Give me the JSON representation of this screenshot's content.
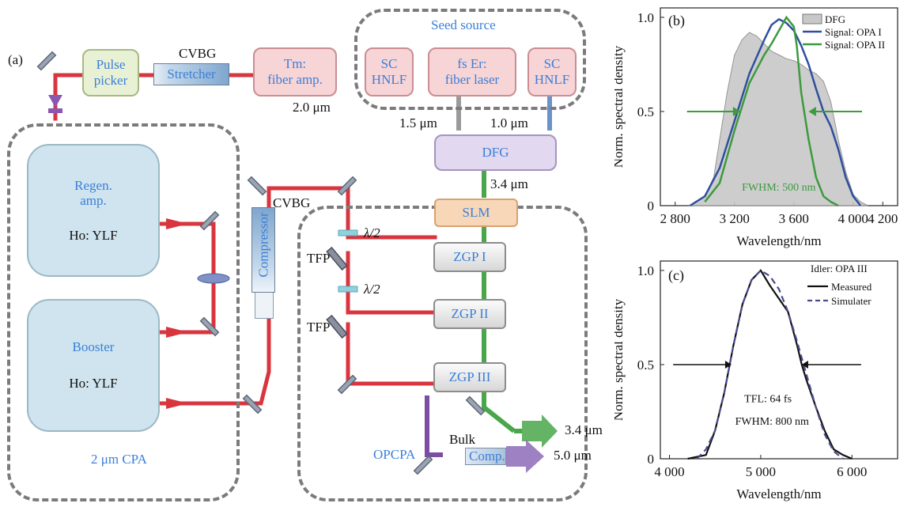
{
  "panels": {
    "a": "(a)",
    "b": "(b)",
    "c": "(c)"
  },
  "setup": {
    "pulse_picker": "Pulse\npicker",
    "cvbg_top": "CVBG",
    "stretcher": "Stretcher",
    "tm_amp": "Tm:\nfiber amp.",
    "seed_source": "Seed source",
    "sc_hnlf_left": "SC\nHNLF",
    "fs_er_laser": "fs Er:\nfiber laser",
    "sc_hnlf_right": "SC\nHNLF",
    "wl_2um": "2.0 μm",
    "wl_15um": "1.5 μm",
    "wl_10um": "1.0 μm",
    "dfg": "DFG",
    "wl_34um_dfg": "3.4 μm",
    "slm": "SLM",
    "cvbg_mid": "CVBG",
    "compressor": "Compressor",
    "regen_title": "Regen.\namp.",
    "regen_crystal": "Ho: YLF",
    "booster_title": "Booster",
    "booster_crystal": "Ho: YLF",
    "cpa_label": "2 μm CPA",
    "half_wave_1": "λ/2",
    "half_wave_2": "λ/2",
    "tfp_1": "TFP",
    "tfp_2": "TFP",
    "zgp1": "ZGP I",
    "zgp2": "ZGP II",
    "zgp3": "ZGP III",
    "out_34um": "3.4 μm",
    "out_50um": "5.0 μm",
    "opcpa_label": "OPCPA",
    "bulk": "Bulk",
    "comp": "Comp."
  },
  "colors": {
    "beam_red": "#d9353f",
    "beam_green": "#4aa64a",
    "beam_purple": "#7b4ea3",
    "beam_grey": "#9a9a9a",
    "beam_blue": "#6a93c9",
    "label_blue": "#3a7fd8",
    "dfg_fill": "#c8c8c8",
    "opa1": "#2f4f9e",
    "opa2": "#3d9a3d",
    "sim": "#4a4a8c"
  },
  "chart_data": [
    {
      "panel": "(b)",
      "type": "area",
      "xlabel": "Wavelength/nm",
      "ylabel": "Norm. spectral density",
      "xlim": [
        2700,
        4300
      ],
      "ylim": [
        0,
        1.05
      ],
      "x_ticks": [
        2800,
        3200,
        3600,
        4000,
        4200
      ],
      "x_tick_labels": [
        "2 800",
        "3 200",
        "3 600",
        "4 000",
        "4 200"
      ],
      "y_ticks": [
        0,
        0.5,
        1.0
      ],
      "y_tick_labels": [
        "0",
        "0.5",
        "1.0"
      ],
      "legend": [
        "DFG",
        "Signal: OPA I",
        "Signal: OPA II"
      ],
      "legend_position": "top-right",
      "annotation": "FWHM: 500 nm",
      "series": [
        {
          "name": "DFG",
          "x": [
            2900,
            3000,
            3060,
            3100,
            3150,
            3200,
            3250,
            3300,
            3350,
            3400,
            3450,
            3500,
            3550,
            3600,
            3650,
            3700,
            3750,
            3800,
            3850,
            3900,
            3950,
            4000,
            4050,
            4100
          ],
          "y": [
            0.0,
            0.05,
            0.15,
            0.35,
            0.6,
            0.8,
            0.88,
            0.92,
            0.9,
            0.86,
            0.82,
            0.8,
            0.78,
            0.77,
            0.75,
            0.72,
            0.7,
            0.66,
            0.55,
            0.35,
            0.18,
            0.06,
            0.02,
            0.0
          ]
        },
        {
          "name": "Signal: OPA I",
          "x": [
            2900,
            3000,
            3100,
            3200,
            3300,
            3400,
            3450,
            3500,
            3550,
            3600,
            3650,
            3700,
            3750,
            3800,
            3850,
            3900,
            3950,
            4000,
            4050
          ],
          "y": [
            0.0,
            0.05,
            0.2,
            0.45,
            0.7,
            0.88,
            0.96,
            0.99,
            0.97,
            0.93,
            0.85,
            0.75,
            0.62,
            0.5,
            0.42,
            0.3,
            0.15,
            0.05,
            0.0
          ]
        },
        {
          "name": "Signal: OPA II",
          "x": [
            3000,
            3100,
            3200,
            3300,
            3400,
            3450,
            3500,
            3550,
            3600,
            3620,
            3650,
            3700,
            3750,
            3800,
            3850,
            3900
          ],
          "y": [
            0.02,
            0.12,
            0.4,
            0.65,
            0.8,
            0.86,
            0.93,
            1.0,
            0.95,
            0.85,
            0.6,
            0.35,
            0.15,
            0.05,
            0.02,
            0.0
          ]
        }
      ]
    },
    {
      "panel": "(c)",
      "type": "line",
      "xlabel": "Wavelength/nm",
      "ylabel": "Norm. spectral density",
      "xlim": [
        3900,
        6500
      ],
      "ylim": [
        0,
        1.05
      ],
      "x_ticks": [
        4000,
        5000,
        6000
      ],
      "x_tick_labels": [
        "4 000",
        "5 000",
        "6 000"
      ],
      "y_ticks": [
        0,
        0.5,
        1.0
      ],
      "y_tick_labels": [
        "0",
        "0.5",
        "1.0"
      ],
      "legend_title": "Idler: OPA III",
      "legend": [
        "Measured",
        "Simulater"
      ],
      "legend_position": "top-right",
      "annotations": [
        "TFL: 64 fs",
        "FWHM: 800 nm"
      ],
      "series": [
        {
          "name": "Measured",
          "x": [
            4200,
            4400,
            4500,
            4600,
            4700,
            4800,
            4900,
            5000,
            5100,
            5200,
            5300,
            5400,
            5450,
            5500,
            5600,
            5700,
            5800,
            5900,
            6000
          ],
          "y": [
            0.0,
            0.02,
            0.15,
            0.35,
            0.6,
            0.82,
            0.95,
            1.0,
            0.92,
            0.85,
            0.78,
            0.6,
            0.5,
            0.42,
            0.28,
            0.15,
            0.05,
            0.02,
            0.0
          ]
        },
        {
          "name": "Simulater",
          "x": [
            4300,
            4400,
            4500,
            4600,
            4700,
            4800,
            4900,
            5000,
            5100,
            5200,
            5300,
            5400,
            5500,
            5600,
            5700,
            5800,
            5900
          ],
          "y": [
            0.0,
            0.05,
            0.15,
            0.35,
            0.6,
            0.82,
            0.95,
            1.0,
            0.97,
            0.9,
            0.78,
            0.62,
            0.45,
            0.28,
            0.13,
            0.04,
            0.0
          ]
        }
      ]
    }
  ]
}
